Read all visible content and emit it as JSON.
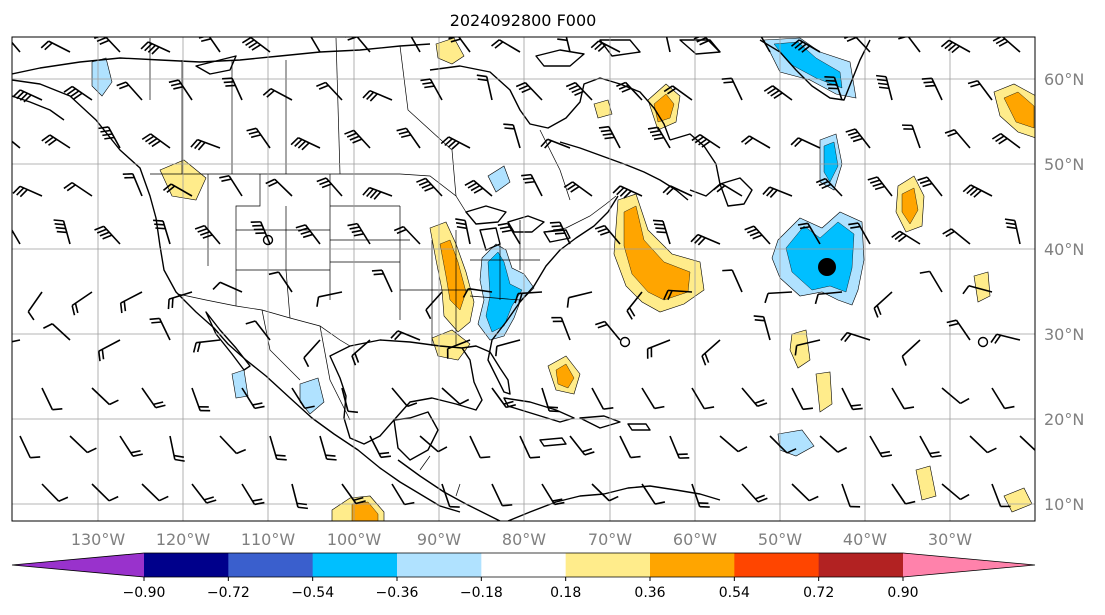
{
  "title": "2024092800 F000",
  "map": {
    "lon_range": [
      -140,
      -21
    ],
    "lat_range": [
      8,
      65
    ],
    "lon_ticks": [
      "130°W",
      "120°W",
      "110°W",
      "100°W",
      "90°W",
      "80°W",
      "70°W",
      "60°W",
      "50°W",
      "40°W",
      "30°W"
    ],
    "lat_ticks": [
      "10°N",
      "20°N",
      "30°N",
      "40°N",
      "50°N",
      "60°N"
    ],
    "grid": true
  },
  "colorbar": {
    "colors": [
      "#9932cc",
      "#00008b",
      "#3a5fcd",
      "#00bfff",
      "#b0e2ff",
      "#ffffff",
      "#ffec8b",
      "#ffa500",
      "#ff4500",
      "#b22222",
      "#ff82ab"
    ],
    "tick_labels": [
      "−0.90",
      "−0.72",
      "−0.54",
      "−0.36",
      "−0.18",
      "0.18",
      "0.36",
      "0.54",
      "0.72",
      "0.90"
    ],
    "extend": "both"
  },
  "features": {
    "negative_color": "#00bfff",
    "negative_light_color": "#b0e2ff",
    "positive_color": "#ffec8b",
    "positive_strong_color": "#ffa500",
    "markers": [
      "filled-circle",
      "open-circle"
    ]
  }
}
